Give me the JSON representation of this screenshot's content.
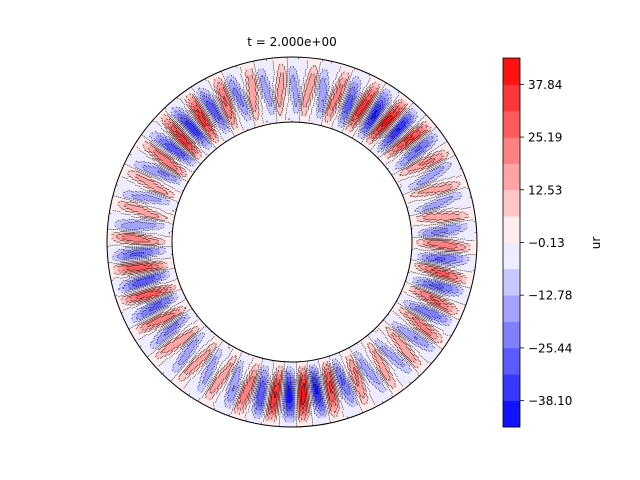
{
  "chart_data": {
    "type": "heatmap",
    "subtype": "filled-contour-annulus",
    "title": "t = 2.000e+00",
    "colorbar": {
      "label": "ur",
      "ticks": [
        "37.84",
        "25.19",
        "12.53",
        "−0.13",
        "−12.78",
        "−25.44",
        "−38.10"
      ],
      "tick_values": [
        37.84,
        25.19,
        12.53,
        -0.13,
        -12.78,
        -25.44,
        -38.1
      ],
      "range": [
        -44.43,
        44.17
      ],
      "levels": 14,
      "colormap": "bwr"
    },
    "field": {
      "variable": "ur",
      "azimuthal_cells": 34,
      "approx_min": -44,
      "approx_max": 44,
      "positive_line_style": "solid",
      "negative_line_style": "dashed"
    },
    "axes_visible": false
  },
  "colors": {
    "max": "#ff1a1a",
    "mid": "#ffffff",
    "min": "#1a1aff",
    "line": "#000000"
  }
}
